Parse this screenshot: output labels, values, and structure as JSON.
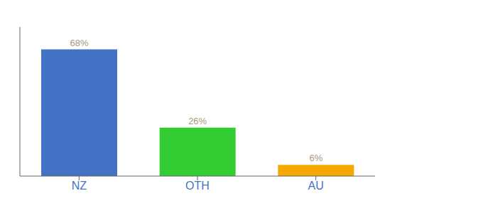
{
  "chart_data": {
    "type": "bar",
    "categories": [
      "NZ",
      "OTH",
      "AU"
    ],
    "values": [
      68,
      26,
      6
    ],
    "value_labels": [
      "68%",
      "26%",
      "6%"
    ],
    "colors": [
      "#4472c4",
      "#33cc33",
      "#f5a800"
    ],
    "ylim": [
      0,
      80
    ],
    "data_labels": true,
    "tick_labels": "x"
  }
}
